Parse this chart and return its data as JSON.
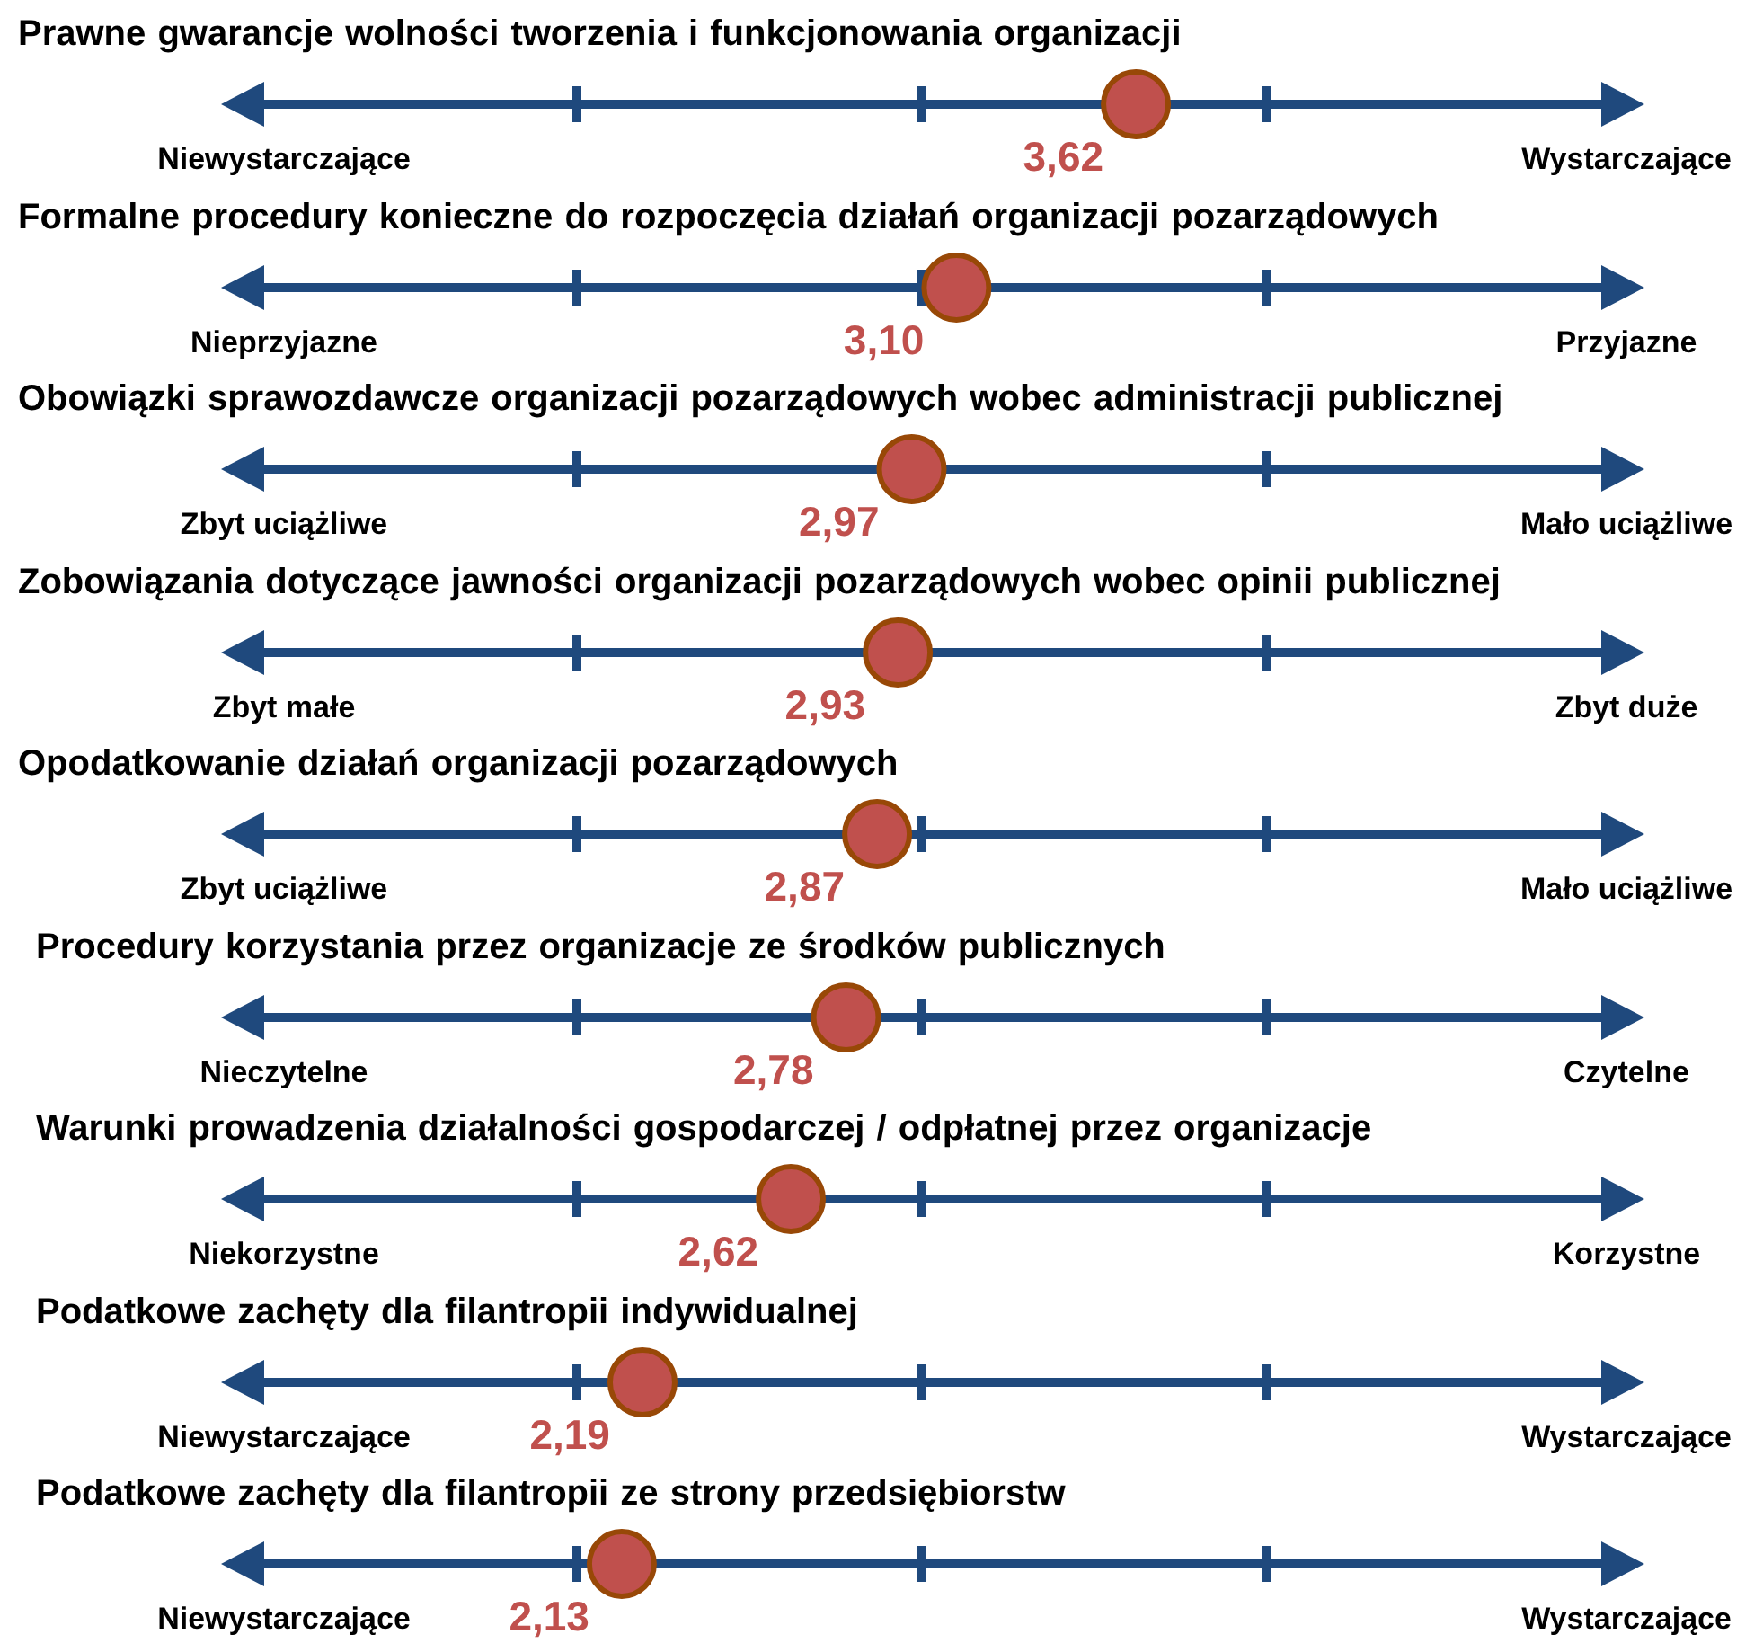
{
  "chart_data": [
    {
      "type": "other",
      "title": "Prawne gwarancje wolności tworzenia i funkcjonowania organizacji",
      "values": [
        3.62
      ],
      "value_labels": [
        "3,62"
      ],
      "color": "#c0504d",
      "annotations": [
        "Niewystarczające",
        "Wystarczające"
      ]
    },
    {
      "type": "other",
      "title": "Formalne procedury konieczne do rozpoczęcia działań organizacji pozarządowych",
      "values": [
        3.1
      ],
      "value_labels": [
        "3,10"
      ],
      "color": "#c0504d",
      "annotations": [
        "Nieprzyjazne",
        "Przyjazne"
      ]
    },
    {
      "type": "other",
      "title": "Obowiązki sprawozdawcze organizacji pozarządowych wobec administracji publicznej",
      "values": [
        2.97
      ],
      "value_labels": [
        "2,97"
      ],
      "color": "#c0504d",
      "annotations": [
        "Zbyt uciążliwe",
        "Mało uciążliwe"
      ]
    },
    {
      "type": "other",
      "title": "Zobowiązania dotyczące jawności organizacji pozarządowych wobec opinii publicznej",
      "values": [
        2.93
      ],
      "value_labels": [
        "2,93"
      ],
      "color": "#c0504d",
      "annotations": [
        "Zbyt małe",
        "Zbyt duże"
      ]
    },
    {
      "type": "other",
      "title": "Opodatkowanie działań organizacji pozarządowych",
      "values": [
        2.87
      ],
      "value_labels": [
        "2,87"
      ],
      "color": "#c0504d",
      "annotations": [
        "Zbyt uciążliwe",
        "Mało uciążliwe"
      ]
    },
    {
      "type": "other",
      "title": "Procedury korzystania przez organizacje ze środków publicznych",
      "values": [
        2.78
      ],
      "value_labels": [
        "2,78"
      ],
      "color": "#c0504d",
      "annotations": [
        "Nieczytelne",
        "Czytelne"
      ]
    },
    {
      "type": "other",
      "title": "Warunki prowadzenia działalności gospodarczej / odpłatnej przez organizacje",
      "values": [
        2.62
      ],
      "value_labels": [
        "2,62"
      ],
      "color": "#c0504d",
      "annotations": [
        "Niekorzystne",
        "Korzystne"
      ]
    },
    {
      "type": "other",
      "title": "Podatkowe zachęty dla filantropii indywidualnej",
      "values": [
        2.19
      ],
      "value_labels": [
        "2,19"
      ],
      "color": "#c0504d",
      "annotations": [
        "Niewystarczające",
        "Wystarczające"
      ]
    },
    {
      "type": "other",
      "title": "Podatkowe zachęty dla filantropii ze strony przedsiębiorstw",
      "values": [
        2.13
      ],
      "value_labels": [
        "2,13"
      ],
      "color": "#c0504d",
      "annotations": [
        "Niewystarczające",
        "Wystarczające"
      ]
    }
  ]
}
